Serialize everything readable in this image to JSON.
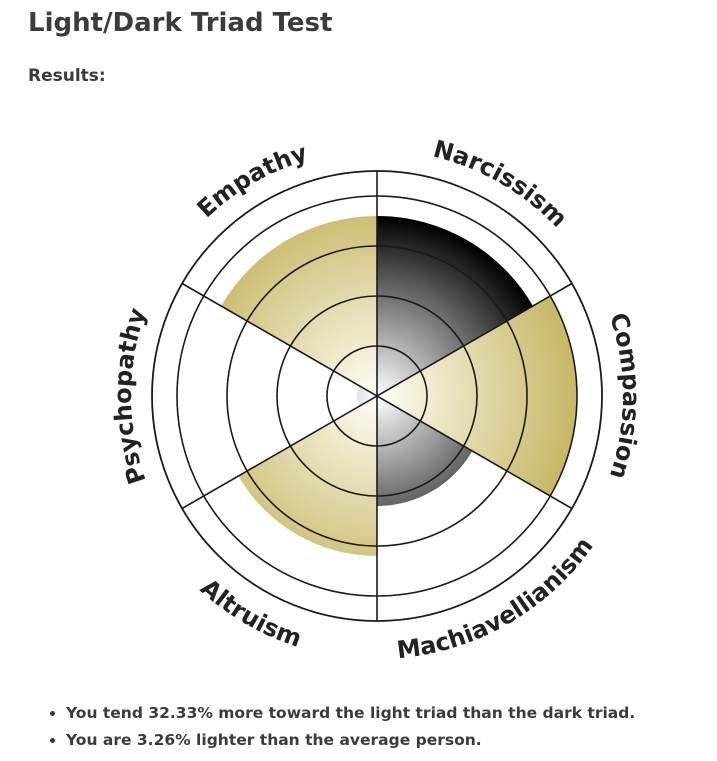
{
  "page": {
    "title": "Light/Dark Triad Test",
    "results_label": "Results:"
  },
  "chart_data": {
    "type": "polar-area",
    "rings": 4,
    "scale_max": 4,
    "series": [
      {
        "name": "Empathy",
        "value": 3.6
      },
      {
        "name": "Narcissism",
        "value": 3.6
      },
      {
        "name": "Compassion",
        "value": 4.0
      },
      {
        "name": "Machiavellianism",
        "value": 2.2
      },
      {
        "name": "Altruism",
        "value": 3.2
      },
      {
        "name": "Psychopathy",
        "value": 0.4
      }
    ],
    "categories": [
      "Empathy",
      "Narcissism",
      "Compassion",
      "Machiavellianism",
      "Altruism",
      "Psychopathy"
    ],
    "colors": {
      "light_outer": "#c7b766",
      "light_inner": "#fffef6",
      "dark_outer": "#000000",
      "dark_inner": "#ffffff",
      "grid": "#1a1a1a"
    }
  },
  "summary": [
    "You tend 32.33% more toward the light triad than the dark triad.",
    "You are 3.26% lighter than the average person."
  ]
}
